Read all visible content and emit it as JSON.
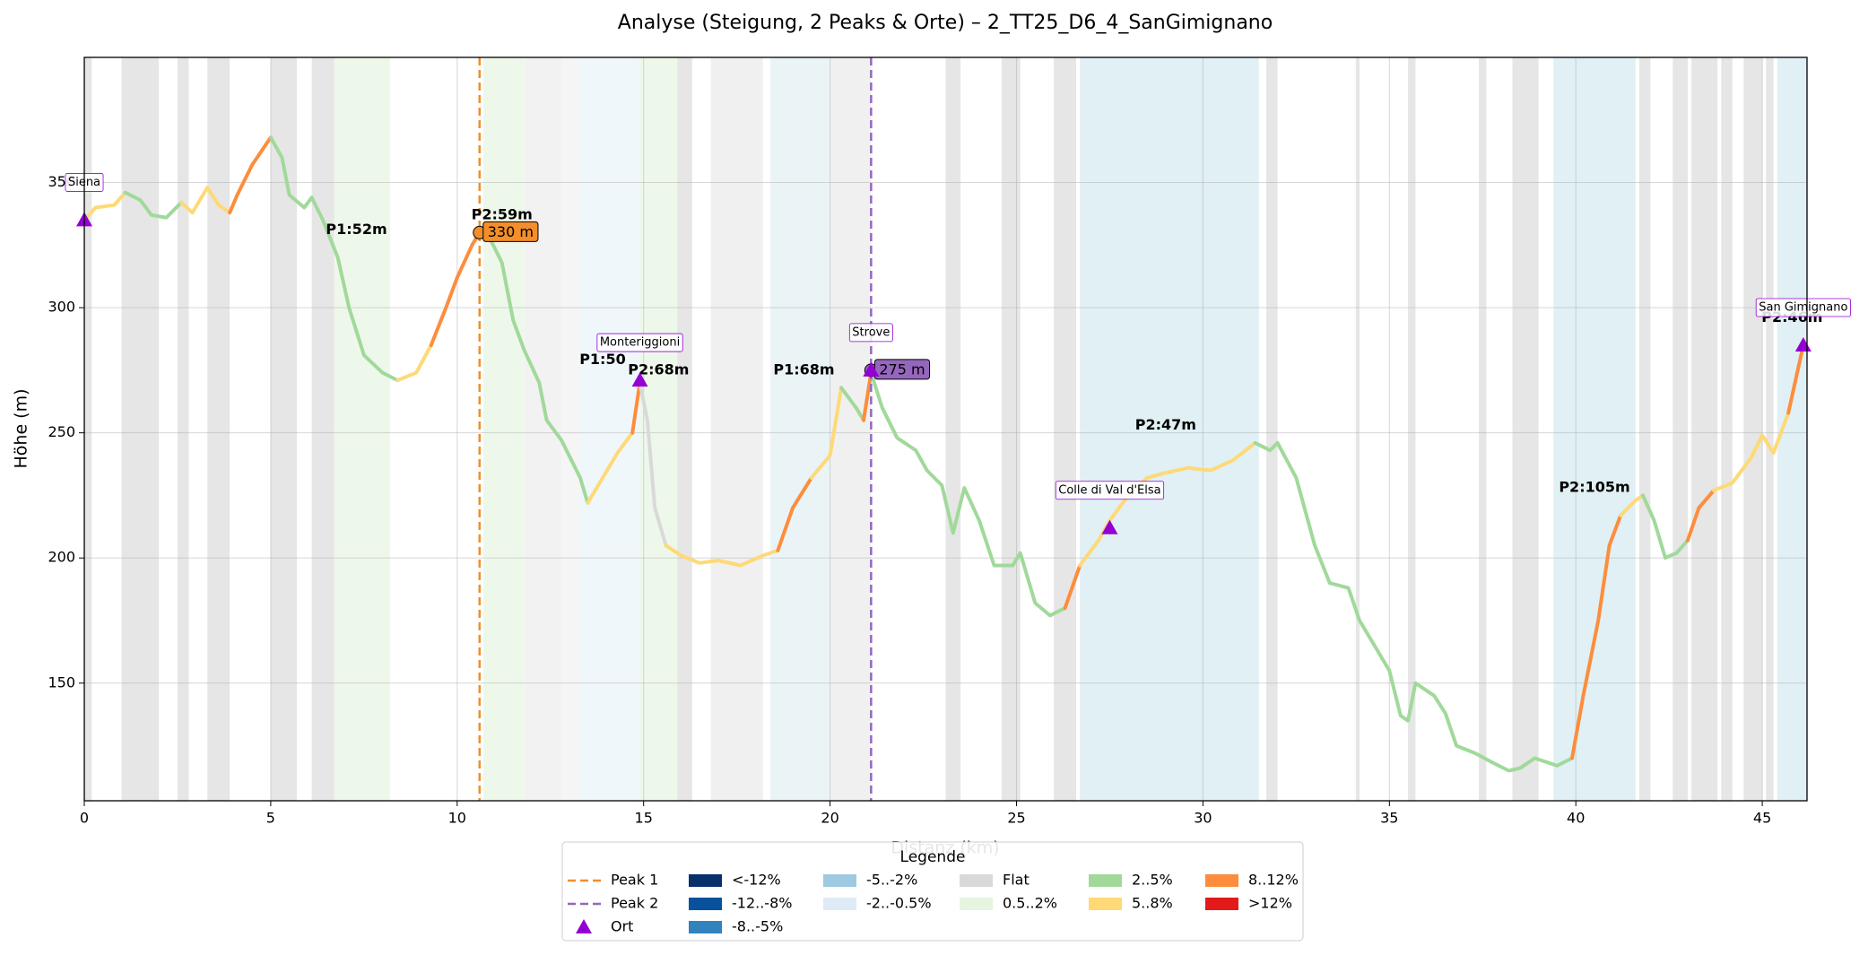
{
  "chart_data": {
    "type": "elevation-profile",
    "title": "Analyse (Steigung, 2 Peaks & Orte) – 2_TT25_D6_4_SanGimignano",
    "x_label": "Distanz (km)",
    "y_label": "Höhe (m)",
    "xlim": [
      0,
      46.2
    ],
    "ylim": [
      103,
      400
    ],
    "xticks": [
      0,
      5,
      10,
      15,
      20,
      25,
      30,
      35,
      40,
      45
    ],
    "yticks": [
      150,
      200,
      250,
      300,
      350
    ],
    "grid": true,
    "spans": [
      {
        "x0": 0,
        "x1": 0.2,
        "color": "#e6e6e6"
      },
      {
        "x0": 1.0,
        "x1": 2.0,
        "color": "#e6e6e6"
      },
      {
        "x0": 2.5,
        "x1": 2.8,
        "color": "#e6e6e6"
      },
      {
        "x0": 3.3,
        "x1": 3.9,
        "color": "#e6e6e6"
      },
      {
        "x0": 5.0,
        "x1": 5.7,
        "color": "#e6e6e6"
      },
      {
        "x0": 6.1,
        "x1": 6.7,
        "color": "#e6e6e6"
      },
      {
        "x0": 6.7,
        "x1": 8.2,
        "color": "#eef8ea"
      },
      {
        "x0": 10.7,
        "x1": 11.8,
        "color": "#eef8ea"
      },
      {
        "x0": 11.8,
        "x1": 12.8,
        "color": "#f2f2f2"
      },
      {
        "x0": 12.8,
        "x1": 13.3,
        "color": "#f5f5f5"
      },
      {
        "x0": 13.3,
        "x1": 14.9,
        "color": "#f0f7fa"
      },
      {
        "x0": 14.9,
        "x1": 15.9,
        "color": "#eef8ea"
      },
      {
        "x0": 15.9,
        "x1": 16.3,
        "color": "#e6e6e6"
      },
      {
        "x0": 16.8,
        "x1": 18.2,
        "color": "#f0f0f0"
      },
      {
        "x0": 18.4,
        "x1": 20.0,
        "color": "#eaf4f7"
      },
      {
        "x0": 20.0,
        "x1": 21.1,
        "color": "#f0f0f0"
      },
      {
        "x0": 23.1,
        "x1": 23.5,
        "color": "#e6e6e6"
      },
      {
        "x0": 24.6,
        "x1": 25.1,
        "color": "#e6e6e6"
      },
      {
        "x0": 26.0,
        "x1": 26.6,
        "color": "#e6e6e6"
      },
      {
        "x0": 26.7,
        "x1": 31.5,
        "color": "#e0f0f5"
      },
      {
        "x0": 31.7,
        "x1": 32.0,
        "color": "#e6e6e6"
      },
      {
        "x0": 34.1,
        "x1": 34.2,
        "color": "#e6e6e6"
      },
      {
        "x0": 35.5,
        "x1": 35.7,
        "color": "#e6e6e6"
      },
      {
        "x0": 37.4,
        "x1": 37.6,
        "color": "#e6e6e6"
      },
      {
        "x0": 38.3,
        "x1": 39.0,
        "color": "#e6e6e6"
      },
      {
        "x0": 39.4,
        "x1": 41.6,
        "color": "#e0f0f5"
      },
      {
        "x0": 41.7,
        "x1": 42.0,
        "color": "#e6e6e6"
      },
      {
        "x0": 42.6,
        "x1": 43.0,
        "color": "#e6e6e6"
      },
      {
        "x0": 43.1,
        "x1": 43.8,
        "color": "#e6e6e6"
      },
      {
        "x0": 43.9,
        "x1": 44.2,
        "color": "#e6e6e6"
      },
      {
        "x0": 44.5,
        "x1": 45.0,
        "color": "#e6e6e6"
      },
      {
        "x0": 45.1,
        "x1": 45.3,
        "color": "#e6e6e6"
      },
      {
        "x0": 45.4,
        "x1": 46.2,
        "color": "#e0f0f5"
      }
    ],
    "segments": [
      {
        "color": "#fed976",
        "x": [
          0,
          0.3,
          0.8,
          1.1
        ],
        "y": [
          335,
          340,
          341,
          346
        ]
      },
      {
        "color": "#a1d99b",
        "x": [
          1.1,
          1.5,
          1.8,
          2.2,
          2.6
        ],
        "y": [
          346,
          343,
          337,
          336,
          342
        ]
      },
      {
        "color": "#fed976",
        "x": [
          2.6,
          2.9,
          3.3,
          3.6,
          3.9
        ],
        "y": [
          342,
          338,
          348,
          341,
          338
        ]
      },
      {
        "color": "#fd8d3c",
        "x": [
          3.9,
          4.1,
          4.5,
          5.0
        ],
        "y": [
          338,
          345,
          357,
          368
        ]
      },
      {
        "color": "#a1d99b",
        "x": [
          5.0,
          5.3,
          5.5,
          5.9,
          6.1,
          6.4,
          6.8,
          7.1,
          7.5,
          8.0,
          8.4
        ],
        "y": [
          368,
          360,
          345,
          340,
          344,
          335,
          320,
          300,
          281,
          274,
          271
        ]
      },
      {
        "color": "#fed976",
        "x": [
          8.4,
          8.9,
          9.3
        ],
        "y": [
          271,
          274,
          285
        ]
      },
      {
        "color": "#fd8d3c",
        "x": [
          9.3,
          9.7,
          10.0,
          10.4,
          10.6
        ],
        "y": [
          285,
          300,
          312,
          325,
          330
        ]
      },
      {
        "color": "#a1d99b",
        "x": [
          10.6,
          10.9,
          11.2,
          11.5,
          11.8,
          12.2,
          12.4,
          12.8,
          13.0,
          13.3,
          13.5
        ],
        "y": [
          330,
          327,
          318,
          295,
          283,
          270,
          255,
          247,
          241,
          232,
          222
        ]
      },
      {
        "color": "#fed976",
        "x": [
          13.5,
          13.9,
          14.3,
          14.7
        ],
        "y": [
          222,
          232,
          242,
          250
        ]
      },
      {
        "color": "#fd8d3c",
        "x": [
          14.7,
          14.9
        ],
        "y": [
          250,
          270
        ]
      },
      {
        "color": "#d9d9d9",
        "x": [
          14.9,
          15.1,
          15.3,
          15.6
        ],
        "y": [
          270,
          255,
          220,
          205
        ]
      },
      {
        "color": "#fed976",
        "x": [
          15.6,
          16.0,
          16.5,
          17.0,
          17.6,
          18.2,
          18.6
        ],
        "y": [
          205,
          201,
          198,
          199,
          197,
          201,
          203
        ]
      },
      {
        "color": "#fd8d3c",
        "x": [
          18.6,
          19.0,
          19.5
        ],
        "y": [
          203,
          220,
          232
        ]
      },
      {
        "color": "#fed976",
        "x": [
          19.5,
          20.0,
          20.3
        ],
        "y": [
          232,
          241,
          268
        ]
      },
      {
        "color": "#a1d99b",
        "x": [
          20.3,
          20.7,
          20.9
        ],
        "y": [
          268,
          260,
          255
        ]
      },
      {
        "color": "#fd8d3c",
        "x": [
          20.9,
          21.1
        ],
        "y": [
          255,
          274
        ]
      },
      {
        "color": "#a1d99b",
        "x": [
          21.1,
          21.4,
          21.8,
          22.3,
          22.6,
          23.0,
          23.3,
          23.6,
          24.0,
          24.4,
          24.9,
          25.1,
          25.5,
          25.9,
          26.3
        ],
        "y": [
          274,
          260,
          248,
          243,
          235,
          229,
          210,
          228,
          215,
          197,
          197,
          202,
          182,
          177,
          180
        ]
      },
      {
        "color": "#fd8d3c",
        "x": [
          26.3,
          26.7
        ],
        "y": [
          180,
          197
        ]
      },
      {
        "color": "#fed976",
        "x": [
          26.7,
          27.2,
          27.5,
          28.0,
          28.5,
          29.0,
          29.6,
          30.2,
          30.8,
          31.4
        ],
        "y": [
          197,
          207,
          215,
          225,
          232,
          234,
          236,
          235,
          239,
          246
        ]
      },
      {
        "color": "#a1d99b",
        "x": [
          31.4,
          31.8,
          32.0,
          32.5,
          33.0,
          33.4,
          33.9,
          34.2,
          34.6,
          35.0,
          35.3,
          35.5,
          35.7,
          36.2,
          36.5,
          36.8,
          37.3,
          37.8,
          38.2,
          38.5,
          38.9,
          39.5,
          39.9
        ],
        "y": [
          246,
          243,
          246,
          232,
          205,
          190,
          188,
          175,
          165,
          155,
          137,
          135,
          150,
          145,
          138,
          125,
          122,
          118,
          115,
          116,
          120,
          117,
          120
        ]
      },
      {
        "color": "#fd8d3c",
        "x": [
          39.9,
          40.2,
          40.6,
          40.9,
          41.2
        ],
        "y": [
          120,
          145,
          175,
          205,
          217
        ]
      },
      {
        "color": "#fed976",
        "x": [
          41.2,
          41.6,
          41.8
        ],
        "y": [
          217,
          223,
          225
        ]
      },
      {
        "color": "#a1d99b",
        "x": [
          41.8,
          42.1,
          42.4,
          42.7,
          43.0
        ],
        "y": [
          225,
          215,
          200,
          202,
          207
        ]
      },
      {
        "color": "#fd8d3c",
        "x": [
          43.0,
          43.3,
          43.7
        ],
        "y": [
          207,
          220,
          227
        ]
      },
      {
        "color": "#fed976",
        "x": [
          43.7,
          44.2,
          44.7,
          45.0,
          45.3,
          45.7
        ],
        "y": [
          227,
          230,
          240,
          249,
          242,
          258
        ]
      },
      {
        "color": "#fd8d3c",
        "x": [
          45.7,
          46.1
        ],
        "y": [
          258,
          285
        ]
      }
    ],
    "peaks": [
      {
        "name": "Peak 1",
        "x": 10.6,
        "elevation": 330,
        "label": "330 m",
        "color": "#f28e2b"
      },
      {
        "name": "Peak 2",
        "x": 21.1,
        "elevation": 275,
        "label": "275 m",
        "color": "#9467bd"
      }
    ],
    "climb_labels": [
      {
        "text": "P1:52m",
        "x": 7.3,
        "y": 331,
        "color": "#2ca02c"
      },
      {
        "text": "P2:59m",
        "x": 11.2,
        "y": 337,
        "color": "#2ca02c"
      },
      {
        "text": "P1:50",
        "x": 13.9,
        "y": 279,
        "color": "#1f77b4"
      },
      {
        "text": "P2:68m",
        "x": 15.4,
        "y": 275,
        "color": "#2ca02c"
      },
      {
        "text": "P1:68m",
        "x": 19.3,
        "y": 275,
        "color": "#1f77b4"
      },
      {
        "text": "P2:47m",
        "x": 29.0,
        "y": 253,
        "color": "#1f77b4"
      },
      {
        "text": "P2:105m",
        "x": 40.5,
        "y": 228,
        "color": "#1f77b4"
      },
      {
        "text": "P2:46m",
        "x": 45.8,
        "y": 296,
        "color": "#1f77b4"
      }
    ],
    "places": {
      "name": "Ort",
      "color": "#9400d3",
      "items": [
        {
          "name": "Siena",
          "x": 0,
          "y": 335
        },
        {
          "name": "Monteriggioni",
          "x": 14.9,
          "y": 271
        },
        {
          "name": "Strove",
          "x": 21.1,
          "y": 275
        },
        {
          "name": "Colle di Val d'Elsa",
          "x": 27.5,
          "y": 212
        },
        {
          "name": "San Gimignano",
          "x": 46.1,
          "y": 285
        }
      ]
    },
    "legend": {
      "title": "Legende",
      "ncol": 6,
      "grades": [
        {
          "name": "<-12%",
          "color": "#08306b"
        },
        {
          "name": "-12..-8%",
          "color": "#08519c"
        },
        {
          "name": "-8..-5%",
          "color": "#3182bd"
        },
        {
          "name": "-5..-2%",
          "color": "#9ecae1"
        },
        {
          "name": "-2..-0.5%",
          "color": "#deebf7"
        },
        {
          "name": "Flat",
          "color": "#d9d9d9"
        },
        {
          "name": "0.5..2%",
          "color": "#e5f5e0"
        },
        {
          "name": "2..5%",
          "color": "#a1d99b"
        },
        {
          "name": "5..8%",
          "color": "#fed976"
        },
        {
          "name": "8..12%",
          "color": "#fd8d3c"
        },
        {
          "name": ">12%",
          "color": "#e31a1c"
        }
      ]
    }
  }
}
